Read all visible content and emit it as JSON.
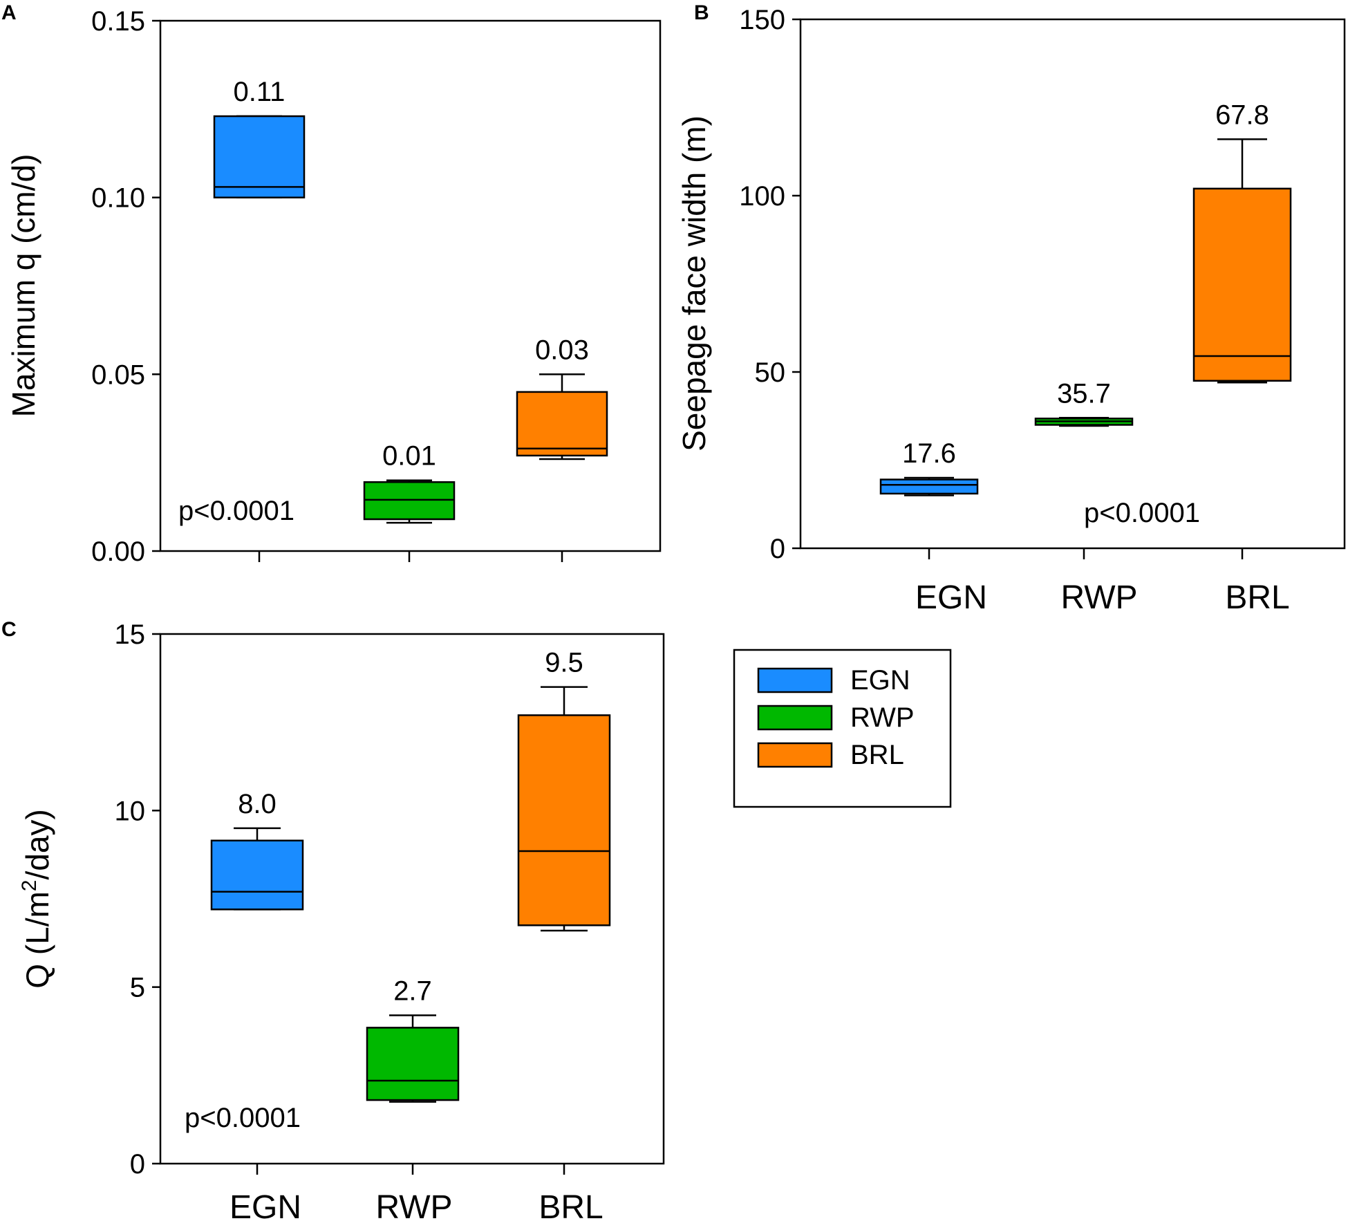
{
  "colors": {
    "EGN": "#1a8cff",
    "RWP": "#00b800",
    "BRL": "#ff8000"
  },
  "legend": {
    "entries": [
      {
        "label": "EGN",
        "color": "#1a8cff"
      },
      {
        "label": "RWP",
        "color": "#00b800"
      },
      {
        "label": "BRL",
        "color": "#ff8000"
      }
    ]
  },
  "chart_data": [
    {
      "type": "box",
      "panel": "A",
      "ylabel": "Maximum q (cm/d)",
      "ylim": [
        0,
        0.15
      ],
      "yticks": [
        "0.00",
        "0.05",
        "0.10",
        "0.15"
      ],
      "categories": [
        "EGN",
        "RWP",
        "BRL"
      ],
      "show_category_labels": false,
      "p_value": "p<0.0001",
      "boxes": [
        {
          "category": "EGN",
          "min": 0.1,
          "q1": 0.1,
          "median": 0.103,
          "q3": 0.123,
          "max": 0.123,
          "label": "0.11",
          "color": "#1a8cff"
        },
        {
          "category": "RWP",
          "min": 0.008,
          "q1": 0.009,
          "median": 0.0145,
          "q3": 0.0195,
          "max": 0.02,
          "label": "0.01",
          "color": "#00b800"
        },
        {
          "category": "BRL",
          "min": 0.026,
          "q1": 0.027,
          "median": 0.029,
          "q3": 0.045,
          "max": 0.05,
          "label": "0.03",
          "color": "#ff8000"
        }
      ]
    },
    {
      "type": "box",
      "panel": "B",
      "ylabel": "Seepage face width (m)",
      "ylim": [
        0,
        150
      ],
      "yticks": [
        "0",
        "50",
        "100",
        "150"
      ],
      "categories": [
        "EGN",
        "RWP",
        "BRL"
      ],
      "show_category_labels": true,
      "p_value": "p<0.0001",
      "boxes": [
        {
          "category": "EGN",
          "min": 15,
          "q1": 15.5,
          "median": 18,
          "q3": 19.5,
          "max": 20,
          "label": "17.6",
          "color": "#1a8cff"
        },
        {
          "category": "RWP",
          "min": 34.7,
          "q1": 35,
          "median": 36,
          "q3": 36.8,
          "max": 37,
          "label": "35.7",
          "color": "#00b800"
        },
        {
          "category": "BRL",
          "min": 47,
          "q1": 47.5,
          "median": 54.5,
          "q3": 102,
          "max": 116,
          "label": "67.8",
          "color": "#ff8000"
        }
      ]
    },
    {
      "type": "box",
      "panel": "C",
      "ylabel": "Q (L/m",
      "ylabel_sup": "2",
      "ylabel_tail": "/day)",
      "ylim": [
        0,
        15
      ],
      "yticks": [
        "0",
        "5",
        "10",
        "15"
      ],
      "categories": [
        "EGN",
        "RWP",
        "BRL"
      ],
      "show_category_labels": true,
      "p_value": "p<0.0001",
      "boxes": [
        {
          "category": "EGN",
          "min": 7.2,
          "q1": 7.2,
          "median": 7.7,
          "q3": 9.15,
          "max": 9.5,
          "label": "8.0",
          "color": "#1a8cff"
        },
        {
          "category": "RWP",
          "min": 1.75,
          "q1": 1.8,
          "median": 2.35,
          "q3": 3.85,
          "max": 4.2,
          "label": "2.7",
          "color": "#00b800"
        },
        {
          "category": "BRL",
          "min": 6.6,
          "q1": 6.75,
          "median": 8.85,
          "q3": 12.7,
          "max": 13.5,
          "label": "9.5",
          "color": "#ff8000"
        }
      ]
    }
  ]
}
